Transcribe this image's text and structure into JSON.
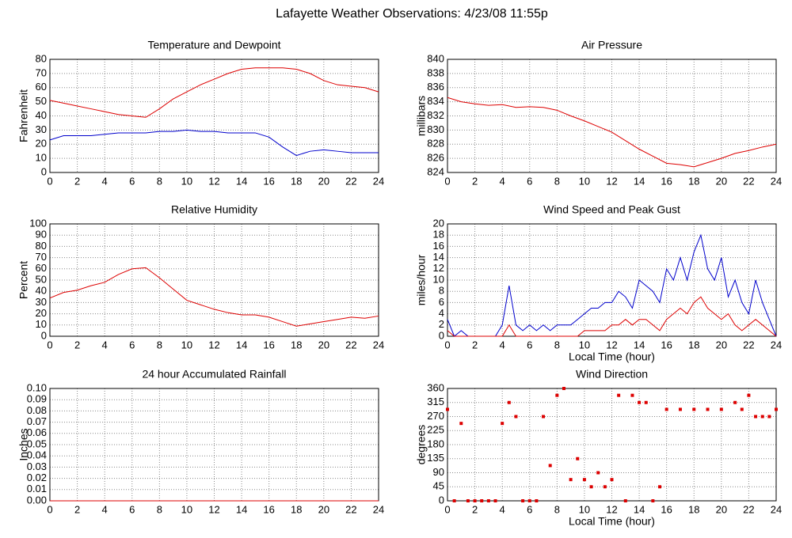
{
  "title": "Lafayette Weather Observations: 4/23/08 11:55p",
  "chart_data": [
    {
      "type": "line",
      "title": "Temperature and Dewpoint",
      "ylabel": "Fahrenheit",
      "x": [
        0,
        1,
        2,
        3,
        4,
        5,
        6,
        7,
        8,
        9,
        10,
        11,
        12,
        13,
        14,
        15,
        16,
        17,
        18,
        19,
        20,
        21,
        22,
        23,
        24
      ],
      "series": [
        {
          "color": "#dd0000",
          "values": [
            51,
            49,
            47,
            45,
            43,
            41,
            40,
            39,
            45,
            52,
            57,
            62,
            66,
            70,
            73,
            74,
            74,
            74,
            73,
            70,
            65,
            62,
            61,
            60,
            57
          ]
        },
        {
          "color": "#0000cc",
          "values": [
            23,
            26,
            26,
            26,
            27,
            28,
            28,
            28,
            29,
            29,
            30,
            29,
            29,
            28,
            28,
            28,
            25,
            18,
            12,
            15,
            16,
            15,
            14,
            14,
            14
          ]
        }
      ],
      "xlim": [
        0,
        24
      ],
      "xticks": [
        0,
        2,
        4,
        6,
        8,
        10,
        12,
        14,
        16,
        18,
        20,
        22,
        24
      ],
      "ylim": [
        0,
        80
      ],
      "yticks": [
        0,
        10,
        20,
        30,
        40,
        50,
        60,
        70,
        80
      ],
      "grid": true
    },
    {
      "type": "line",
      "title": "Air Pressure",
      "ylabel": "millibars",
      "x": [
        0,
        1,
        2,
        3,
        4,
        5,
        6,
        7,
        8,
        9,
        10,
        11,
        12,
        13,
        14,
        15,
        16,
        17,
        18,
        19,
        20,
        21,
        22,
        23,
        24
      ],
      "series": [
        {
          "color": "#dd0000",
          "values": [
            834.6,
            834.0,
            833.7,
            833.5,
            833.6,
            833.2,
            833.3,
            833.2,
            832.8,
            832.0,
            831.3,
            830.5,
            829.7,
            828.5,
            827.3,
            826.3,
            825.3,
            825.1,
            824.8,
            825.4,
            826.0,
            826.7,
            827.1,
            827.6,
            828.0
          ]
        }
      ],
      "xlim": [
        0,
        24
      ],
      "xticks": [
        0,
        2,
        4,
        6,
        8,
        10,
        12,
        14,
        16,
        18,
        20,
        22,
        24
      ],
      "ylim": [
        824,
        840
      ],
      "yticks": [
        824,
        826,
        828,
        830,
        832,
        834,
        836,
        838,
        840
      ],
      "grid": true
    },
    {
      "type": "line",
      "title": "Relative Humidity",
      "ylabel": "Percent",
      "x": [
        0,
        1,
        2,
        3,
        4,
        5,
        6,
        7,
        8,
        9,
        10,
        11,
        12,
        13,
        14,
        15,
        16,
        17,
        18,
        19,
        20,
        21,
        22,
        23,
        24
      ],
      "series": [
        {
          "color": "#dd0000",
          "values": [
            34,
            39,
            41,
            45,
            48,
            55,
            60,
            61,
            52,
            42,
            32,
            28,
            24,
            21,
            19,
            19,
            17,
            13,
            9,
            11,
            13,
            15,
            17,
            16,
            18
          ]
        }
      ],
      "xlim": [
        0,
        24
      ],
      "xticks": [
        0,
        2,
        4,
        6,
        8,
        10,
        12,
        14,
        16,
        18,
        20,
        22,
        24
      ],
      "ylim": [
        0,
        100
      ],
      "yticks": [
        0,
        10,
        20,
        30,
        40,
        50,
        60,
        70,
        80,
        90,
        100
      ],
      "grid": true
    },
    {
      "type": "line",
      "title": "Wind Speed and Peak Gust",
      "ylabel": "miles/hour",
      "xlabel": "Local Time (hour)",
      "x": [
        0,
        0.5,
        1,
        1.5,
        2,
        2.5,
        3,
        3.5,
        4,
        4.5,
        5,
        5.5,
        6,
        6.5,
        7,
        7.5,
        8,
        8.5,
        9,
        9.5,
        10,
        10.5,
        11,
        11.5,
        12,
        12.5,
        13,
        13.5,
        14,
        14.5,
        15,
        15.5,
        16,
        16.5,
        17,
        17.5,
        18,
        18.5,
        19,
        19.5,
        20,
        20.5,
        21,
        21.5,
        22,
        22.5,
        23,
        23.5,
        24
      ],
      "series": [
        {
          "color": "#0000cc",
          "values": [
            3,
            0,
            1,
            0,
            0,
            0,
            0,
            0,
            2,
            9,
            2,
            1,
            2,
            1,
            2,
            1,
            2,
            2,
            2,
            3,
            4,
            5,
            5,
            6,
            6,
            8,
            7,
            5,
            10,
            9,
            8,
            6,
            12,
            10,
            14,
            10,
            15,
            18,
            12,
            10,
            14,
            7,
            10,
            6,
            4,
            10,
            6,
            3,
            0
          ]
        },
        {
          "color": "#dd0000",
          "values": [
            1,
            0,
            0,
            0,
            0,
            0,
            0,
            0,
            0,
            2,
            0,
            0,
            0,
            0,
            0,
            0,
            0,
            0,
            0,
            0,
            1,
            1,
            1,
            1,
            2,
            2,
            3,
            2,
            3,
            3,
            2,
            1,
            3,
            4,
            5,
            4,
            6,
            7,
            5,
            4,
            3,
            4,
            2,
            1,
            2,
            3,
            2,
            1,
            0
          ]
        }
      ],
      "xlim": [
        0,
        24
      ],
      "xticks": [
        0,
        2,
        4,
        6,
        8,
        10,
        12,
        14,
        16,
        18,
        20,
        22,
        24
      ],
      "ylim": [
        0,
        20
      ],
      "yticks": [
        0,
        2,
        4,
        6,
        8,
        10,
        12,
        14,
        16,
        18,
        20
      ],
      "grid": true
    },
    {
      "type": "line",
      "title": "24 hour Accumulated Rainfall",
      "ylabel": "Inches",
      "x": [
        0,
        24
      ],
      "series": [
        {
          "color": "#dd0000",
          "values": [
            0,
            0
          ]
        }
      ],
      "xlim": [
        0,
        24
      ],
      "xticks": [
        0,
        2,
        4,
        6,
        8,
        10,
        12,
        14,
        16,
        18,
        20,
        22,
        24
      ],
      "ylim": [
        0,
        0.1
      ],
      "yticks": [
        {
          "value": 0,
          "label": "0.00"
        },
        0.01,
        0.02,
        0.03,
        0.04,
        0.05,
        0.06,
        0.07,
        0.08,
        0.09,
        {
          "value": 0.1,
          "label": "0.10"
        }
      ],
      "grid": true
    },
    {
      "type": "scatter",
      "title": "Wind Direction",
      "ylabel": "degrees",
      "xlabel": "Local Time (hour)",
      "x": [
        0,
        0.5,
        1,
        1.5,
        2,
        2.5,
        3,
        3.5,
        4,
        4.5,
        5,
        5.5,
        6,
        6.5,
        7,
        7.5,
        8,
        8.5,
        9,
        9.5,
        10,
        10.5,
        11,
        11.5,
        12,
        12.5,
        13,
        13.5,
        14,
        14.5,
        15,
        15.5,
        16,
        17,
        18,
        19,
        20,
        21,
        21.5,
        22,
        22.5,
        23,
        23.5,
        24
      ],
      "series": [
        {
          "color": "#dd0000",
          "values": [
            293,
            0,
            248,
            0,
            0,
            0,
            0,
            0,
            248,
            315,
            270,
            0,
            0,
            0,
            270,
            113,
            338,
            360,
            68,
            135,
            68,
            45,
            90,
            45,
            68,
            338,
            0,
            338,
            315,
            315,
            0,
            45,
            293,
            293,
            293,
            293,
            293,
            315,
            293,
            338,
            270,
            270,
            270,
            293
          ]
        }
      ],
      "xlim": [
        0,
        24
      ],
      "xticks": [
        0,
        2,
        4,
        6,
        8,
        10,
        12,
        14,
        16,
        18,
        20,
        22,
        24
      ],
      "ylim": [
        0,
        360
      ],
      "yticks": [
        0,
        45,
        90,
        135,
        180,
        225,
        270,
        315,
        360
      ],
      "grid": true
    }
  ]
}
